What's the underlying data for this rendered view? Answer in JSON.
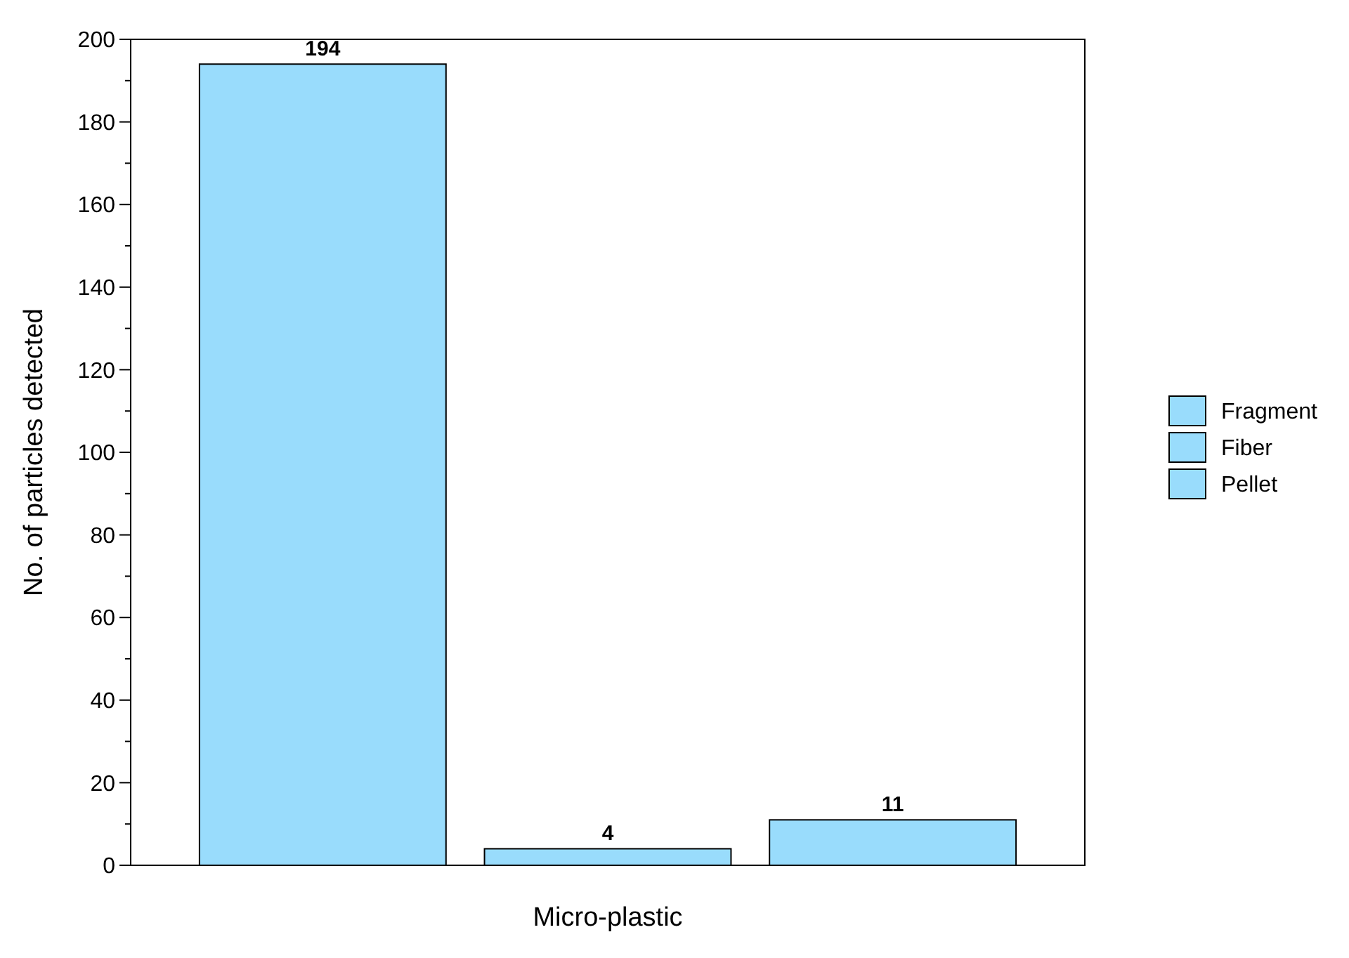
{
  "chart_data": {
    "type": "bar",
    "xlabel": "Micro-plastic",
    "ylabel": "No. of particles detected",
    "categories": [
      null
    ],
    "series": [
      {
        "name": "Fragment",
        "color": "#99dcfc",
        "values": [
          194
        ]
      },
      {
        "name": "Fiber",
        "color": "#99dcfc",
        "values": [
          4
        ]
      },
      {
        "name": "Pellet",
        "color": "#99dcfc",
        "values": [
          11
        ]
      }
    ],
    "ylim": [
      0,
      200
    ],
    "yticks": [
      0,
      {
        "value": 10,
        "label": null
      },
      20,
      {
        "value": 30,
        "label": null
      },
      40,
      {
        "value": 50,
        "label": null
      },
      60,
      {
        "value": 70,
        "label": null
      },
      80,
      {
        "value": 90,
        "label": null
      },
      100,
      {
        "value": 110,
        "label": null
      },
      120,
      {
        "value": 130,
        "label": null
      },
      140,
      {
        "value": 150,
        "label": null
      },
      160,
      {
        "value": 170,
        "label": null
      },
      180,
      {
        "value": 190,
        "label": null
      },
      200
    ],
    "data_labels": true,
    "legend": "right",
    "grid": false
  }
}
